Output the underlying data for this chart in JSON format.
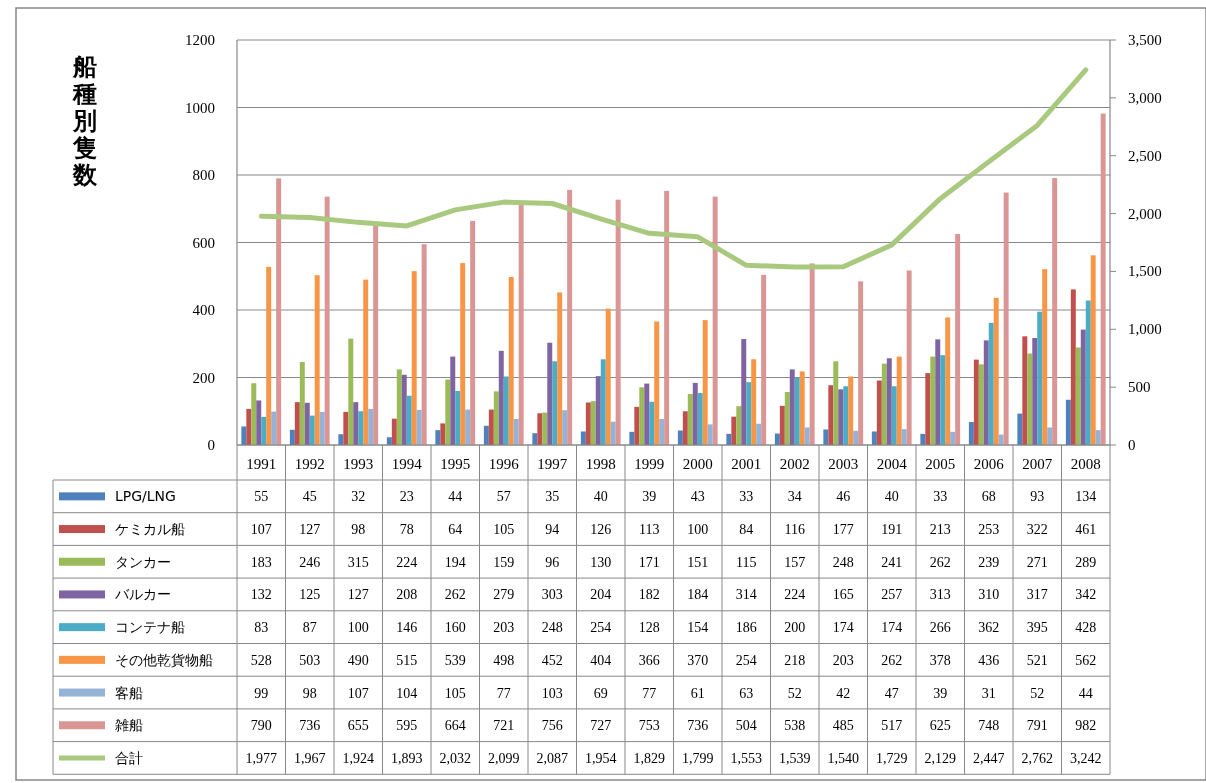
{
  "chart_data": {
    "type": "bar",
    "ylabel": "船種別隻数",
    "categories": [
      "1991",
      "1992",
      "1993",
      "1994",
      "1995",
      "1996",
      "1997",
      "1998",
      "1999",
      "2000",
      "2001",
      "2002",
      "2003",
      "2004",
      "2005",
      "2006",
      "2007",
      "2008"
    ],
    "series": [
      {
        "name": "LPG/LNG",
        "color": "#4f81bd",
        "values": [
          55,
          45,
          32,
          23,
          44,
          57,
          35,
          40,
          39,
          43,
          33,
          34,
          46,
          40,
          33,
          68,
          93,
          134
        ]
      },
      {
        "name": "ケミカル船",
        "color": "#c0504d",
        "values": [
          107,
          127,
          98,
          78,
          64,
          105,
          94,
          126,
          113,
          100,
          84,
          116,
          177,
          191,
          213,
          253,
          322,
          461
        ]
      },
      {
        "name": "タンカー",
        "color": "#9bbb59",
        "values": [
          183,
          246,
          315,
          224,
          194,
          159,
          96,
          130,
          171,
          151,
          115,
          157,
          248,
          241,
          262,
          239,
          271,
          289
        ]
      },
      {
        "name": "バルカー",
        "color": "#8064a2",
        "values": [
          132,
          125,
          127,
          208,
          262,
          279,
          303,
          204,
          182,
          184,
          314,
          224,
          165,
          257,
          313,
          310,
          317,
          342
        ]
      },
      {
        "name": "コンテナ船",
        "color": "#4bacc6",
        "values": [
          83,
          87,
          100,
          146,
          160,
          203,
          248,
          254,
          128,
          154,
          186,
          200,
          174,
          174,
          266,
          362,
          395,
          428
        ]
      },
      {
        "name": "その他乾貨物船",
        "color": "#f79646",
        "values": [
          528,
          503,
          490,
          515,
          539,
          498,
          452,
          404,
          366,
          370,
          254,
          218,
          203,
          262,
          378,
          436,
          521,
          562
        ]
      },
      {
        "name": "客船",
        "color": "#95b3d7",
        "values": [
          99,
          98,
          107,
          104,
          105,
          77,
          103,
          69,
          77,
          61,
          63,
          52,
          42,
          47,
          39,
          31,
          52,
          44
        ]
      },
      {
        "name": "雑船",
        "color": "#d99694",
        "values": [
          790,
          736,
          655,
          595,
          664,
          721,
          756,
          727,
          753,
          736,
          504,
          538,
          485,
          517,
          625,
          748,
          791,
          982
        ]
      },
      {
        "name": "合計",
        "color": "#a9c97f",
        "type": "line",
        "axis": "y2",
        "values": [
          1977,
          1967,
          1924,
          1893,
          2032,
          2099,
          2087,
          1954,
          1829,
          1799,
          1553,
          1539,
          1540,
          1729,
          2129,
          2447,
          2762,
          3242
        ],
        "value_labels": [
          "1,977",
          "1,967",
          "1,924",
          "1,893",
          "2,032",
          "2,099",
          "2,087",
          "1,954",
          "1,829",
          "1,799",
          "1,553",
          "1,539",
          "1,540",
          "1,729",
          "2,129",
          "2,447",
          "2,762",
          "3,242"
        ]
      }
    ],
    "ylim": [
      0,
      1200
    ],
    "yticks": [
      0,
      200,
      400,
      600,
      800,
      1000,
      1200
    ],
    "y2lim": [
      0,
      3500
    ],
    "y2ticks": [
      0,
      500,
      {
        "value": 1000,
        "label": "1,000"
      },
      {
        "value": 1500,
        "label": "1,500"
      },
      {
        "value": 2000,
        "label": "2,000"
      },
      {
        "value": 2500,
        "label": "2,500"
      },
      {
        "value": 3000,
        "label": "3,000"
      },
      {
        "value": 3500,
        "label": "3,500"
      }
    ],
    "grid": "y",
    "legend": "bottom",
    "data_labels": true
  }
}
